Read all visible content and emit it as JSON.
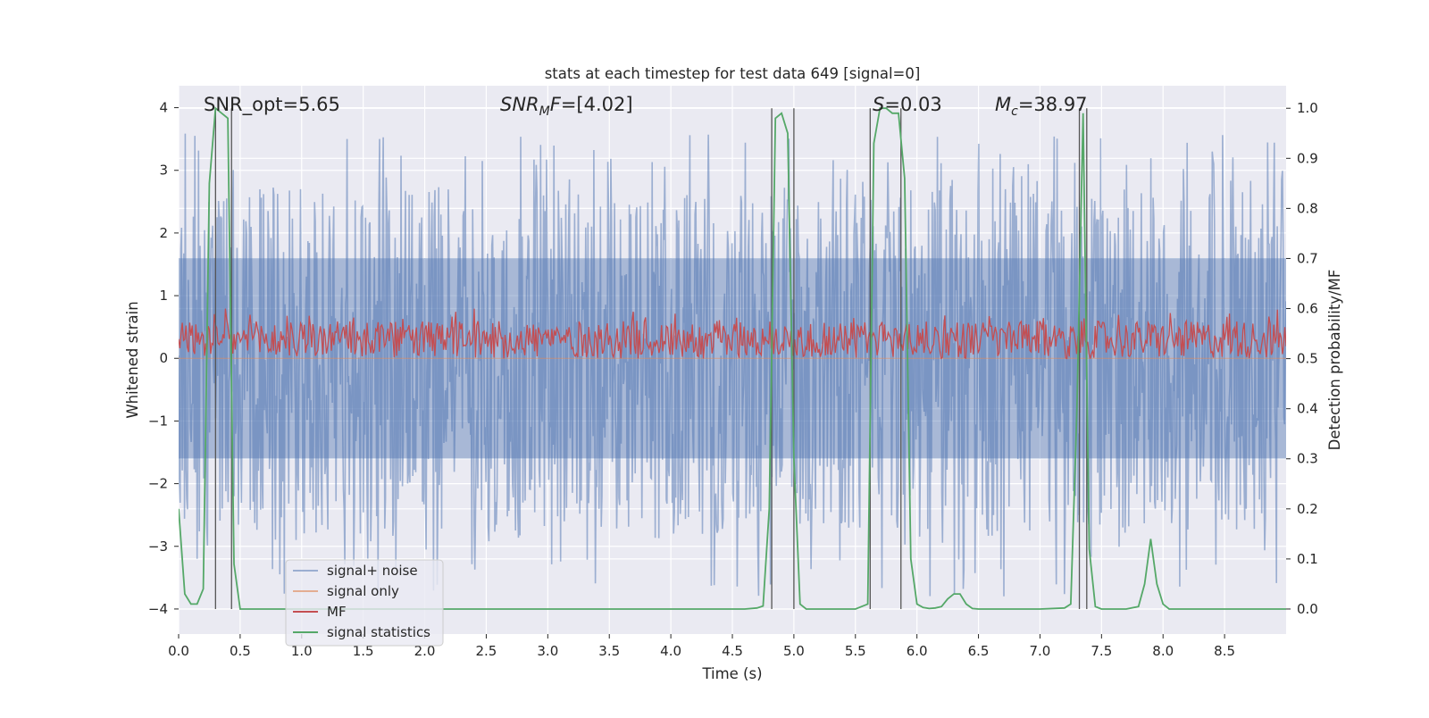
{
  "chart_data": {
    "type": "line",
    "title": "stats at each timestep for test data 649 [signal=0]",
    "xlabel": "Time (s)",
    "ylabel": "Whitened strain",
    "y2label": "Detection probability/MF",
    "xlim": [
      0,
      9.0
    ],
    "ylim": [
      -4.4,
      4.35
    ],
    "y2lim": [
      -0.05,
      1.045
    ],
    "x_ticks": [
      "0.0",
      "0.5",
      "1.0",
      "1.5",
      "2.0",
      "2.5",
      "3.0",
      "3.5",
      "4.0",
      "4.5",
      "5.0",
      "5.5",
      "6.0",
      "6.5",
      "7.0",
      "7.5",
      "8.0",
      "8.5"
    ],
    "y_ticks": [
      "−4",
      "−3",
      "−2",
      "−1",
      "0",
      "1",
      "2",
      "3",
      "4"
    ],
    "y2_ticks": [
      "0.0",
      "0.1",
      "0.2",
      "0.3",
      "0.4",
      "0.5",
      "0.6",
      "0.7",
      "0.8",
      "0.9",
      "1.0"
    ],
    "grid": true,
    "legend_position": "lower-left",
    "annotations": [
      {
        "text": "SNR_opt=5.65",
        "x": 0.2
      },
      {
        "prefix": "SNR",
        "sub": "M",
        "suffix": "F=[4.02]",
        "x": 2.6
      },
      {
        "prefix": "S",
        "sub": "",
        "suffix": "=0.03",
        "x": 5.6
      },
      {
        "prefix": "M",
        "sub": "c",
        "suffix": "=38.97",
        "x": 6.6
      }
    ],
    "vlines": [
      0.3,
      0.43,
      4.82,
      5.0,
      5.62,
      5.87,
      7.32,
      7.38
    ],
    "series": [
      {
        "name": "signal+ noise",
        "axis": "left",
        "color": "#4c72b0",
        "opacity": 0.5,
        "kind": "noise",
        "core_range": [
          -1.6,
          1.6
        ],
        "peak_max": 3.6,
        "peak_min": -3.8
      },
      {
        "name": "signal only",
        "axis": "left",
        "color": "#dd8452",
        "opacity": 0.6,
        "kind": "flat",
        "values_y": 0
      },
      {
        "name": "MF",
        "axis": "right",
        "color": "#c44e52",
        "kind": "band",
        "band_range": [
          0.5,
          0.6
        ]
      },
      {
        "name": "signal statistics",
        "axis": "right",
        "color": "#55a868",
        "x": [
          0.0,
          0.05,
          0.1,
          0.15,
          0.2,
          0.25,
          0.3,
          0.35,
          0.4,
          0.45,
          0.5,
          0.55,
          0.6,
          1.0,
          2.0,
          3.0,
          4.0,
          4.6,
          4.7,
          4.75,
          4.8,
          4.85,
          4.9,
          4.95,
          5.0,
          5.05,
          5.1,
          5.15,
          5.2,
          5.5,
          5.6,
          5.65,
          5.7,
          5.75,
          5.8,
          5.85,
          5.9,
          5.95,
          6.0,
          6.05,
          6.1,
          6.15,
          6.2,
          6.25,
          6.3,
          6.35,
          6.4,
          6.45,
          6.5,
          6.55,
          7.0,
          7.2,
          7.25,
          7.3,
          7.35,
          7.4,
          7.45,
          7.5,
          7.6,
          7.7,
          7.8,
          7.85,
          7.9,
          7.95,
          8.0,
          8.05,
          8.1,
          8.15,
          8.5,
          9.0
        ],
        "y": [
          0.2,
          0.03,
          0.01,
          0.01,
          0.04,
          0.85,
          1.0,
          0.99,
          0.98,
          0.09,
          0.0,
          0.0,
          0.0,
          0.0,
          0.0,
          0.0,
          0.0,
          0.0,
          0.002,
          0.006,
          0.2,
          0.98,
          0.99,
          0.95,
          0.3,
          0.01,
          0.0,
          0.0,
          0.0,
          0.0,
          0.01,
          0.93,
          1.0,
          1.0,
          0.99,
          0.99,
          0.86,
          0.1,
          0.01,
          0.003,
          0.001,
          0.002,
          0.005,
          0.02,
          0.03,
          0.03,
          0.01,
          0.001,
          0.0,
          0.0,
          0.0,
          0.002,
          0.01,
          0.4,
          0.99,
          0.12,
          0.005,
          0.0,
          0.0,
          0.0,
          0.005,
          0.05,
          0.14,
          0.05,
          0.01,
          0.0,
          0.0,
          0.0,
          0.0,
          0.0
        ]
      }
    ]
  }
}
